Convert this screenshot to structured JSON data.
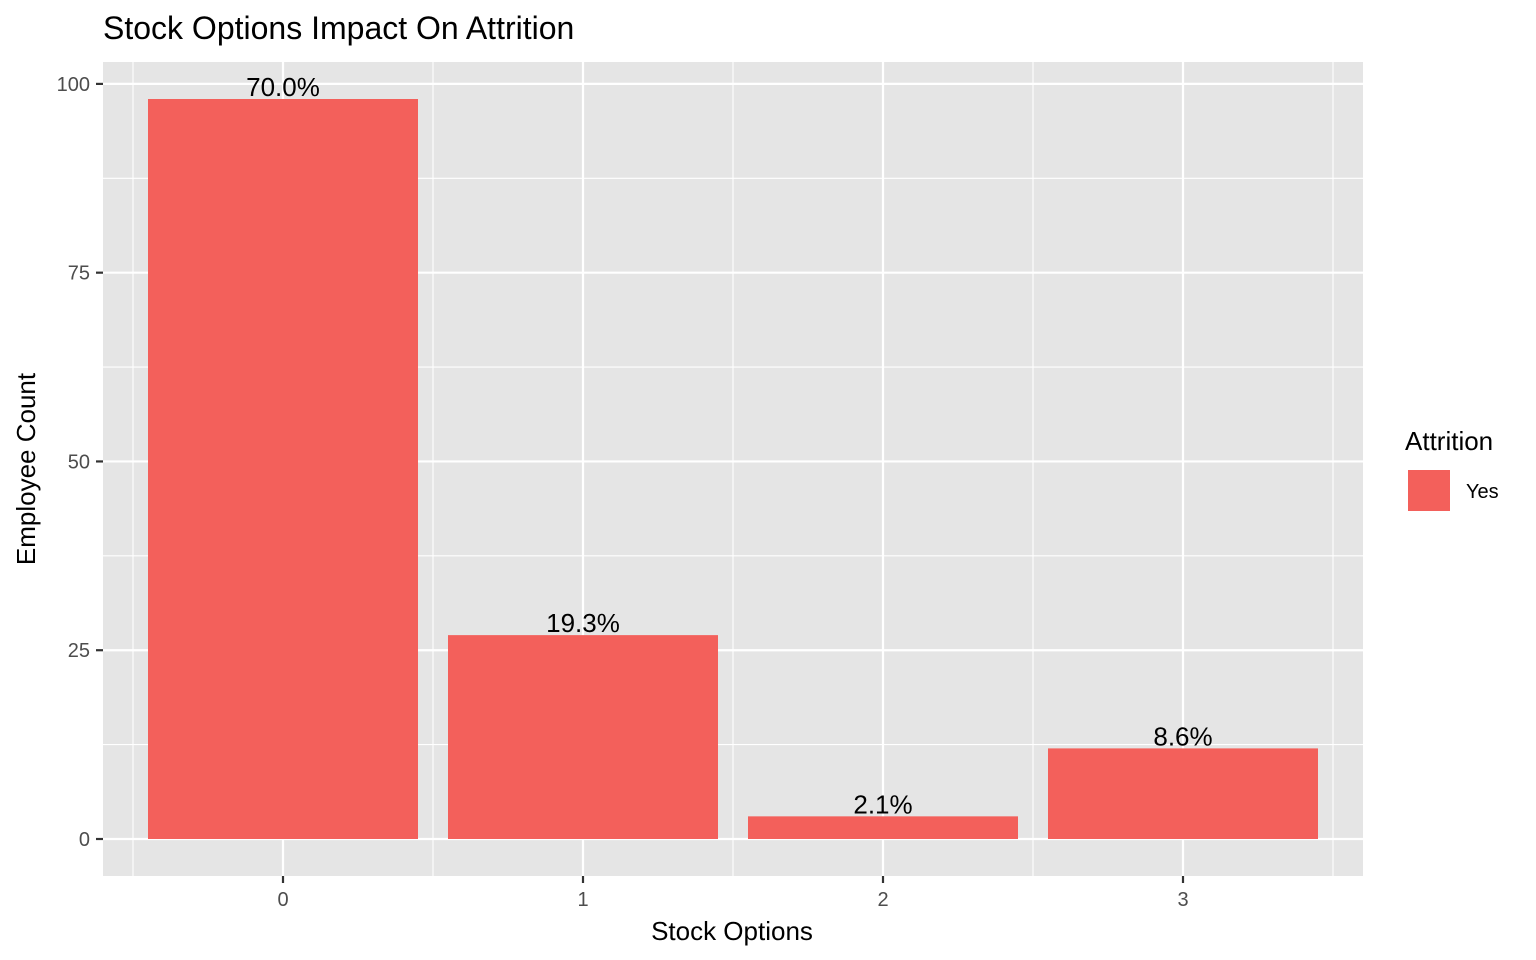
{
  "chart_data": {
    "type": "bar",
    "title": "Stock Options Impact On Attrition",
    "xlabel": "Stock Options",
    "ylabel": "Employee Count",
    "categories": [
      "0",
      "1",
      "2",
      "3"
    ],
    "series": [
      {
        "name": "Yes",
        "values": [
          98,
          27,
          3,
          12
        ],
        "labels": [
          "70.0%",
          "19.3%",
          "2.1%",
          "8.6%"
        ],
        "color": "#F3605B"
      }
    ],
    "y_ticks": [
      "0",
      "25",
      "50",
      "75",
      "100"
    ],
    "ylim": [
      -4.9,
      102.9
    ],
    "grid": true,
    "panel_background": "#E5E5E5",
    "grid_color": "#FFFFFF",
    "legend": {
      "title": "Attrition",
      "position": "right"
    }
  }
}
